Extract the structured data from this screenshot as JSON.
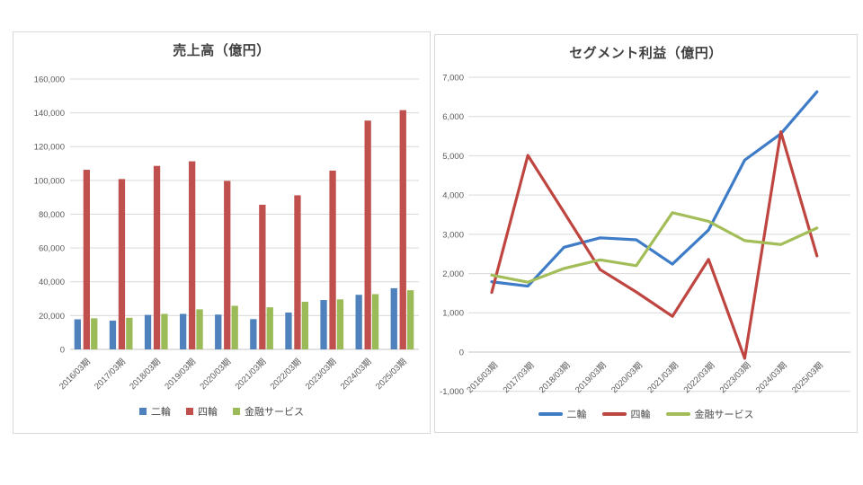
{
  "page": {
    "background": "#ffffff",
    "panel_border": "#d9d9d9",
    "gridline_color": "#d9d9d9",
    "axis_line_color": "#c6c6c6",
    "title_color": "#404040",
    "tick_label_color": "#595959"
  },
  "chart_data": [
    {
      "type": "bar",
      "title": "売上高（億円）",
      "xlabel": "",
      "ylabel": "",
      "categories": [
        "2016/03期",
        "2017/03期",
        "2018/03期",
        "2019/03期",
        "2020/03期",
        "2021/03期",
        "2022/03期",
        "2023/03期",
        "2024/03期",
        "2025/03期"
      ],
      "series": [
        {
          "name": "二輪",
          "color": "#4F81BD",
          "values": [
            17800,
            17000,
            20400,
            21000,
            20600,
            17900,
            21800,
            29200,
            32300,
            36200
          ]
        },
        {
          "name": "四輪",
          "color": "#C0504D",
          "values": [
            106300,
            100800,
            108600,
            111300,
            99700,
            85600,
            91200,
            105800,
            135400,
            141600
          ]
        },
        {
          "name": "金融サービス",
          "color": "#9BBB59",
          "values": [
            18400,
            18700,
            21000,
            23700,
            25800,
            24900,
            28200,
            29600,
            32700,
            35000
          ]
        }
      ],
      "ylim": [
        0,
        160000
      ],
      "y_step": 20000,
      "grid": "horizontal",
      "legend_position": "bottom",
      "x_tick_rotation": -45
    },
    {
      "type": "line",
      "title": "セグメント利益（億円）",
      "xlabel": "",
      "ylabel": "",
      "categories": [
        "2016/03期",
        "2017/03期",
        "2018/03期",
        "2019/03期",
        "2020/03期",
        "2021/03期",
        "2022/03期",
        "2023/03期",
        "2024/03期",
        "2025/03期"
      ],
      "series": [
        {
          "name": "二輪",
          "color": "#3E7CC7",
          "values": [
            1790,
            1680,
            2670,
            2910,
            2860,
            2240,
            3110,
            4890,
            5560,
            6630
          ]
        },
        {
          "name": "四輪",
          "color": "#BF4540",
          "values": [
            1520,
            5010,
            3560,
            2100,
            1530,
            910,
            2360,
            -160,
            5610,
            2450
          ]
        },
        {
          "name": "金融サービス",
          "color": "#A3BD58",
          "values": [
            1960,
            1780,
            2130,
            2350,
            2200,
            3550,
            3330,
            2840,
            2740,
            3160
          ]
        }
      ],
      "ylim": [
        -1000,
        7000
      ],
      "y_step": 1000,
      "grid": "horizontal",
      "legend_position": "bottom",
      "x_tick_rotation": -45
    }
  ]
}
